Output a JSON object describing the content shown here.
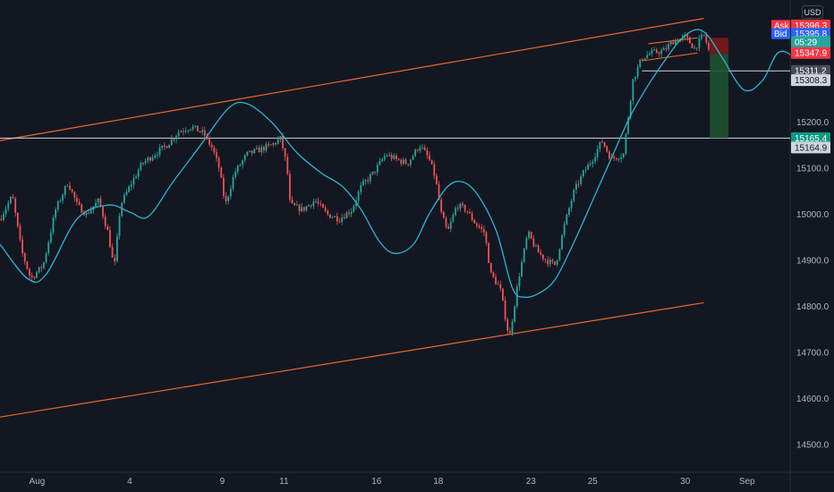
{
  "currency": "USD",
  "chart_data": {
    "type": "line",
    "instrument_type": "candlestick",
    "x_ticks": [
      {
        "label": "Aug",
        "pos": 0.0
      },
      {
        "label": "4",
        "pos": 3.0
      },
      {
        "label": "9",
        "pos": 6.0
      },
      {
        "label": "11",
        "pos": 8.0
      },
      {
        "label": "16",
        "pos": 11.0
      },
      {
        "label": "18",
        "pos": 13.0
      },
      {
        "label": "23",
        "pos": 16.0
      },
      {
        "label": "25",
        "pos": 18.0
      },
      {
        "label": "30",
        "pos": 21.0
      },
      {
        "label": "Sep",
        "pos": 23.0
      }
    ],
    "y_ticks": [
      14500,
      14600,
      14700,
      14800,
      14900,
      15000,
      15100,
      15200,
      15300,
      15400
    ],
    "ylim": [
      14440,
      15465
    ],
    "xlim": [
      -1.2,
      24.4
    ],
    "price_series": {
      "name": "",
      "color": "#26a69a",
      "anchors": [
        [
          -1.2,
          14990
        ],
        [
          -0.8,
          15040
        ],
        [
          -0.5,
          14920
        ],
        [
          -0.2,
          14860
        ],
        [
          0.2,
          14890
        ],
        [
          0.6,
          15010
        ],
        [
          1.0,
          15070
        ],
        [
          1.3,
          15020
        ],
        [
          1.6,
          15000
        ],
        [
          2.0,
          15030
        ],
        [
          2.3,
          14960
        ],
        [
          2.5,
          14880
        ],
        [
          2.7,
          15020
        ],
        [
          3.0,
          15060
        ],
        [
          3.4,
          15110
        ],
        [
          3.8,
          15130
        ],
        [
          4.2,
          15150
        ],
        [
          4.6,
          15180
        ],
        [
          5.0,
          15190
        ],
        [
          5.4,
          15175
        ],
        [
          5.7,
          15140
        ],
        [
          5.9,
          15100
        ],
        [
          6.1,
          15020
        ],
        [
          6.4,
          15090
        ],
        [
          6.8,
          15130
        ],
        [
          7.2,
          15140
        ],
        [
          7.6,
          15150
        ],
        [
          7.9,
          15165
        ],
        [
          8.1,
          15100
        ],
        [
          8.2,
          15020
        ],
        [
          8.6,
          15010
        ],
        [
          9.0,
          15030
        ],
        [
          9.4,
          15000
        ],
        [
          9.8,
          14990
        ],
        [
          10.2,
          15010
        ],
        [
          10.5,
          15060
        ],
        [
          10.9,
          15090
        ],
        [
          11.3,
          15130
        ],
        [
          11.6,
          15120
        ],
        [
          12.0,
          15110
        ],
        [
          12.4,
          15150
        ],
        [
          12.7,
          15120
        ],
        [
          12.9,
          15080
        ],
        [
          13.1,
          15000
        ],
        [
          13.3,
          14960
        ],
        [
          13.6,
          15020
        ],
        [
          13.9,
          15010
        ],
        [
          14.2,
          14980
        ],
        [
          14.5,
          14960
        ],
        [
          14.7,
          14870
        ],
        [
          15.0,
          14840
        ],
        [
          15.3,
          14730
        ],
        [
          15.6,
          14860
        ],
        [
          15.9,
          14960
        ],
        [
          16.2,
          14920
        ],
        [
          16.5,
          14900
        ],
        [
          16.8,
          14890
        ],
        [
          17.1,
          14980
        ],
        [
          17.4,
          15050
        ],
        [
          17.7,
          15090
        ],
        [
          18.0,
          15120
        ],
        [
          18.3,
          15160
        ],
        [
          18.6,
          15120
        ],
        [
          19.0,
          15130
        ],
        [
          19.3,
          15290
        ],
        [
          19.6,
          15340
        ],
        [
          19.9,
          15350
        ],
        [
          20.3,
          15355
        ],
        [
          20.6,
          15375
        ],
        [
          21.0,
          15385
        ],
        [
          21.3,
          15360
        ],
        [
          21.6,
          15390
        ],
        [
          21.8,
          15348
        ]
      ]
    },
    "wave_series": {
      "name": "",
      "color": "#29b6d1",
      "anchors": [
        [
          -1.2,
          14935
        ],
        [
          -0.3,
          14860
        ],
        [
          0.3,
          14870
        ],
        [
          1.3,
          14990
        ],
        [
          2.3,
          15020
        ],
        [
          3.0,
          15005
        ],
        [
          3.6,
          14995
        ],
        [
          4.4,
          15070
        ],
        [
          5.3,
          15150
        ],
        [
          6.2,
          15230
        ],
        [
          6.8,
          15240
        ],
        [
          7.6,
          15200
        ],
        [
          8.4,
          15135
        ],
        [
          9.2,
          15090
        ],
        [
          9.9,
          15060
        ],
        [
          10.5,
          15010
        ],
        [
          11.1,
          14940
        ],
        [
          11.6,
          14915
        ],
        [
          12.2,
          14935
        ],
        [
          12.7,
          15000
        ],
        [
          13.3,
          15060
        ],
        [
          13.8,
          15070
        ],
        [
          14.3,
          15040
        ],
        [
          14.9,
          14960
        ],
        [
          15.4,
          14840
        ],
        [
          15.8,
          14820
        ],
        [
          16.3,
          14830
        ],
        [
          16.8,
          14860
        ],
        [
          17.4,
          14940
        ],
        [
          18.0,
          15030
        ],
        [
          18.6,
          15120
        ],
        [
          19.2,
          15210
        ],
        [
          19.8,
          15280
        ],
        [
          20.3,
          15330
        ],
        [
          20.8,
          15375
        ],
        [
          21.3,
          15400
        ],
        [
          21.7,
          15390
        ],
        [
          22.2,
          15340
        ],
        [
          22.9,
          15270
        ],
        [
          23.5,
          15290
        ],
        [
          24.0,
          15350
        ],
        [
          24.5,
          15340
        ],
        [
          25.0,
          15280
        ],
        [
          25.6,
          15210
        ],
        [
          26.2,
          15150
        ],
        [
          27.0,
          15110
        ],
        [
          27.7,
          15160
        ],
        [
          28.4,
          15230
        ]
      ]
    },
    "upper_channel": {
      "color": "#e8692a",
      "points": [
        [
          -1.2,
          15160
        ],
        [
          21.6,
          15425
        ]
      ]
    },
    "lower_channel": {
      "color": "#e8692a",
      "points": [
        [
          -1.2,
          14560
        ],
        [
          21.6,
          14808
        ]
      ]
    },
    "horizontal_lines": [
      {
        "value": 15311.2,
        "from": 19.6,
        "color": "#d1d4dc"
      },
      {
        "value": 15165.4,
        "from": -1.2,
        "color": "#d1d4dc"
      }
    ],
    "wedge": {
      "color": "#e8692a",
      "top": [
        [
          19.8,
          15370
        ],
        [
          21.4,
          15383
        ]
      ],
      "bottom": [
        [
          19.6,
          15333
        ],
        [
          21.4,
          15350
        ]
      ]
    },
    "position_tool": {
      "x_start": 21.8,
      "x_end": 22.4,
      "entry": 15347.9,
      "stop": 15383,
      "target": 15165.4,
      "risk_color": "#7a1a1a",
      "reward_color": "#1f5130"
    },
    "price_tags": [
      {
        "label": "Ask",
        "value": "15396.3",
        "bg": "#f23645",
        "fg": "#ffffff",
        "price": 15410
      },
      {
        "label": "Bid",
        "value": "15395.8",
        "bg": "#2962ff",
        "fg": "#ffffff",
        "price": 15392
      },
      {
        "label": "",
        "value": "05:29",
        "bg": "#26a69a",
        "fg": "#ffffff",
        "price": 15374
      },
      {
        "label": "",
        "value": "15347.9",
        "bg": "#f23645",
        "fg": "#ffffff",
        "price": 15350
      },
      {
        "label": "",
        "value": "15311.2",
        "bg": "#4a4d57",
        "fg": "#ffffff",
        "price": 15311.2
      },
      {
        "label": "",
        "value": "15308.3",
        "bg": "#d1d4dc",
        "fg": "#131722",
        "price": 15291
      },
      {
        "label": "",
        "value": "15165.4",
        "bg": "#089981",
        "fg": "#ffffff",
        "price": 15165.4
      },
      {
        "label": "",
        "value": "15164.9",
        "bg": "#d1d4dc",
        "fg": "#131722",
        "price": 15145
      }
    ]
  }
}
